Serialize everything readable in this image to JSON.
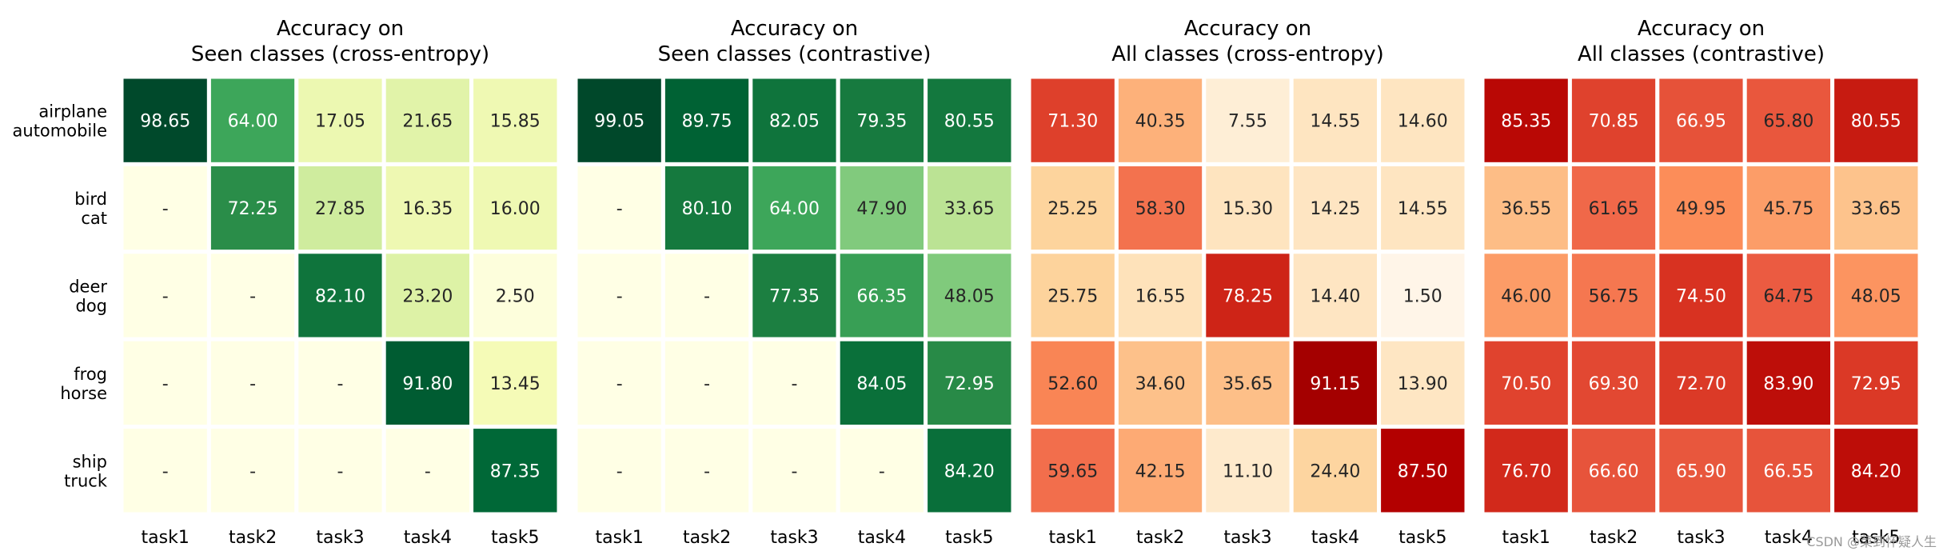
{
  "chart_data": [
    {
      "type": "heatmap",
      "title_lines": [
        "Accuracy on",
        "Seen classes (cross-entropy)"
      ],
      "colormap": "greens",
      "x_labels": [
        "task1",
        "task2",
        "task3",
        "task4",
        "task5"
      ],
      "y_labels": [
        [
          "airplane",
          "automobile"
        ],
        [
          "bird",
          "cat"
        ],
        [
          "deer",
          "dog"
        ],
        [
          "frog",
          "horse"
        ],
        [
          "ship",
          "truck"
        ]
      ],
      "values": [
        [
          98.65,
          64.0,
          17.05,
          21.65,
          15.85
        ],
        [
          null,
          72.25,
          27.85,
          16.35,
          16.0
        ],
        [
          null,
          null,
          82.1,
          23.2,
          2.5
        ],
        [
          null,
          null,
          null,
          91.8,
          13.45
        ],
        [
          null,
          null,
          null,
          null,
          87.35
        ]
      ],
      "labels": [
        [
          "98.65",
          "64.00",
          "17.05",
          "21.65",
          "15.85"
        ],
        [
          "-",
          "72.25",
          "27.85",
          "16.35",
          "16.00"
        ],
        [
          "-",
          "-",
          "82.10",
          "23.20",
          "2.50"
        ],
        [
          "-",
          "-",
          "-",
          "91.80",
          "13.45"
        ],
        [
          "-",
          "-",
          "-",
          "-",
          "87.35"
        ]
      ]
    },
    {
      "type": "heatmap",
      "title_lines": [
        "Accuracy on",
        "Seen classes (contrastive)"
      ],
      "colormap": "greens",
      "x_labels": [
        "task1",
        "task2",
        "task3",
        "task4",
        "task5"
      ],
      "y_labels": [],
      "values": [
        [
          99.05,
          89.75,
          82.05,
          79.35,
          80.55
        ],
        [
          null,
          80.1,
          64.0,
          47.9,
          33.65
        ],
        [
          null,
          null,
          77.35,
          66.35,
          48.05
        ],
        [
          null,
          null,
          null,
          84.05,
          72.95
        ],
        [
          null,
          null,
          null,
          null,
          84.2
        ]
      ],
      "labels": [
        [
          "99.05",
          "89.75",
          "82.05",
          "79.35",
          "80.55"
        ],
        [
          "-",
          "80.10",
          "64.00",
          "47.90",
          "33.65"
        ],
        [
          "-",
          "-",
          "77.35",
          "66.35",
          "48.05"
        ],
        [
          "-",
          "-",
          "-",
          "84.05",
          "72.95"
        ],
        [
          "-",
          "-",
          "-",
          "-",
          "84.20"
        ]
      ]
    },
    {
      "type": "heatmap",
      "title_lines": [
        "Accuracy on",
        "All classes (cross-entropy)"
      ],
      "colormap": "oranges-reds",
      "x_labels": [
        "task1",
        "task2",
        "task3",
        "task4",
        "task5"
      ],
      "y_labels": [],
      "values": [
        [
          71.3,
          40.35,
          7.55,
          14.55,
          14.6
        ],
        [
          25.25,
          58.3,
          15.3,
          14.25,
          14.55
        ],
        [
          25.75,
          16.55,
          78.25,
          14.4,
          1.5
        ],
        [
          52.6,
          34.6,
          35.65,
          91.15,
          13.9
        ],
        [
          59.65,
          42.15,
          11.1,
          24.4,
          87.5
        ]
      ],
      "labels": [
        [
          "71.30",
          "40.35",
          "7.55",
          "14.55",
          "14.60"
        ],
        [
          "25.25",
          "58.30",
          "15.30",
          "14.25",
          "14.55"
        ],
        [
          "25.75",
          "16.55",
          "78.25",
          "14.40",
          "1.50"
        ],
        [
          "52.60",
          "34.60",
          "35.65",
          "91.15",
          "13.90"
        ],
        [
          "59.65",
          "42.15",
          "11.10",
          "24.40",
          "87.50"
        ]
      ]
    },
    {
      "type": "heatmap",
      "title_lines": [
        "Accuracy on",
        "All classes (contrastive)"
      ],
      "colormap": "oranges-reds",
      "x_labels": [
        "task1",
        "task2",
        "task3",
        "task4",
        "task5"
      ],
      "y_labels": [],
      "values": [
        [
          85.35,
          70.85,
          66.95,
          65.8,
          80.55
        ],
        [
          36.55,
          61.65,
          49.95,
          45.75,
          33.65
        ],
        [
          46.0,
          56.75,
          74.5,
          64.75,
          48.05
        ],
        [
          70.5,
          69.3,
          72.7,
          83.9,
          72.95
        ],
        [
          76.7,
          66.6,
          65.9,
          66.55,
          84.2
        ]
      ],
      "labels": [
        [
          "85.35",
          "70.85",
          "66.95",
          "65.80",
          "80.55"
        ],
        [
          "36.55",
          "61.65",
          "49.95",
          "45.75",
          "33.65"
        ],
        [
          "46.00",
          "56.75",
          "74.50",
          "64.75",
          "48.05"
        ],
        [
          "70.50",
          "69.30",
          "72.70",
          "83.90",
          "72.95"
        ],
        [
          "76.70",
          "66.60",
          "65.90",
          "66.55",
          "84.20"
        ]
      ]
    }
  ],
  "colors": {
    "greens": [
      "#ffffe5",
      "#f7fcb9",
      "#d9f0a3",
      "#addd8e",
      "#78c679",
      "#41ab5d",
      "#238443",
      "#006837",
      "#004529"
    ],
    "oranges_reds": [
      "#fff7ec",
      "#fee8c8",
      "#fdd49e",
      "#fdbb84",
      "#fc8d59",
      "#ef6548",
      "#d7301f",
      "#b30000",
      "#7f0000"
    ],
    "missing_cell": "#ffffe5",
    "cell_border": "#ffffff"
  },
  "watermark": "CSDN @菜到怀疑人生"
}
